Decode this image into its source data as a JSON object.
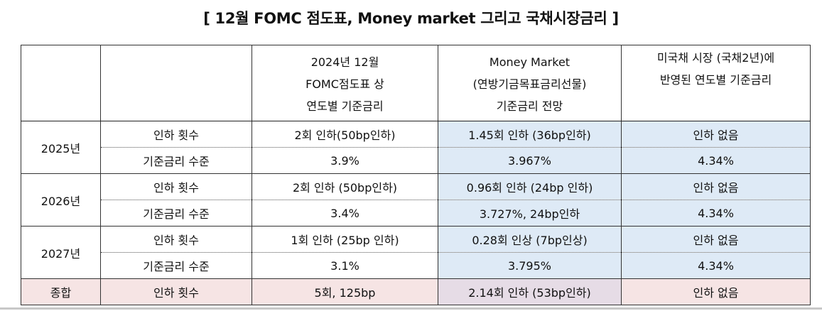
{
  "title": "[ 12월 FOMC 점도표, Money market 그리고 국채시장금리 ]",
  "header": {
    "col0": "",
    "col1": "",
    "dot_plot": [
      "2024년 12월",
      "FOMC점도표 상",
      "연도별 기준금리"
    ],
    "money_market": [
      "Money Market",
      "(연방기금목표금리선물)",
      "기준금리 전망"
    ],
    "treasury": [
      "미국채 시장 (국채2년)에",
      "반영된 연도별 기준금리"
    ]
  },
  "years": [
    {
      "year": "2025년",
      "cut_label": "인하 횟수",
      "rate_label": "기준금리 수준",
      "dot_cuts": "2회 인하(50bp인하)",
      "dot_rate": "3.9%",
      "mm_cuts": "1.45회 인하 (36bp인하)",
      "mm_rate": "3.967%",
      "tsy_cuts": "인하 없음",
      "tsy_rate": "4.34%"
    },
    {
      "year": "2026년",
      "cut_label": "인하 횟수",
      "rate_label": "기준금리 수준",
      "dot_cuts": "2회 인하 (50bp인하)",
      "dot_rate": "3.4%",
      "mm_cuts": "0.96회 인하 (24bp 인하)",
      "mm_rate": "3.727%, 24bp인하",
      "tsy_cuts": "인하 없음",
      "tsy_rate": "4.34%"
    },
    {
      "year": "2027년",
      "cut_label": "인하 횟수",
      "rate_label": "기준금리 수준",
      "dot_cuts": "1회 인하 (25bp 인하)",
      "dot_rate": "3.1%",
      "mm_cuts": "0.28회 인상 (7bp인상)",
      "mm_rate": "3.795%",
      "tsy_cuts": "인하 없음",
      "tsy_rate": "4.34%"
    }
  ],
  "total": {
    "label": "종합",
    "cut_label": "인하 횟수",
    "dot": "5회, 125bp",
    "mm": "2.14회 인하 (53bp인하)",
    "tsy": "인하 없음"
  },
  "colors": {
    "money_market_bg": "#deeaf6",
    "total_row_bg": "#f6e4e4",
    "total_mm_bg": "#e6dce6"
  }
}
